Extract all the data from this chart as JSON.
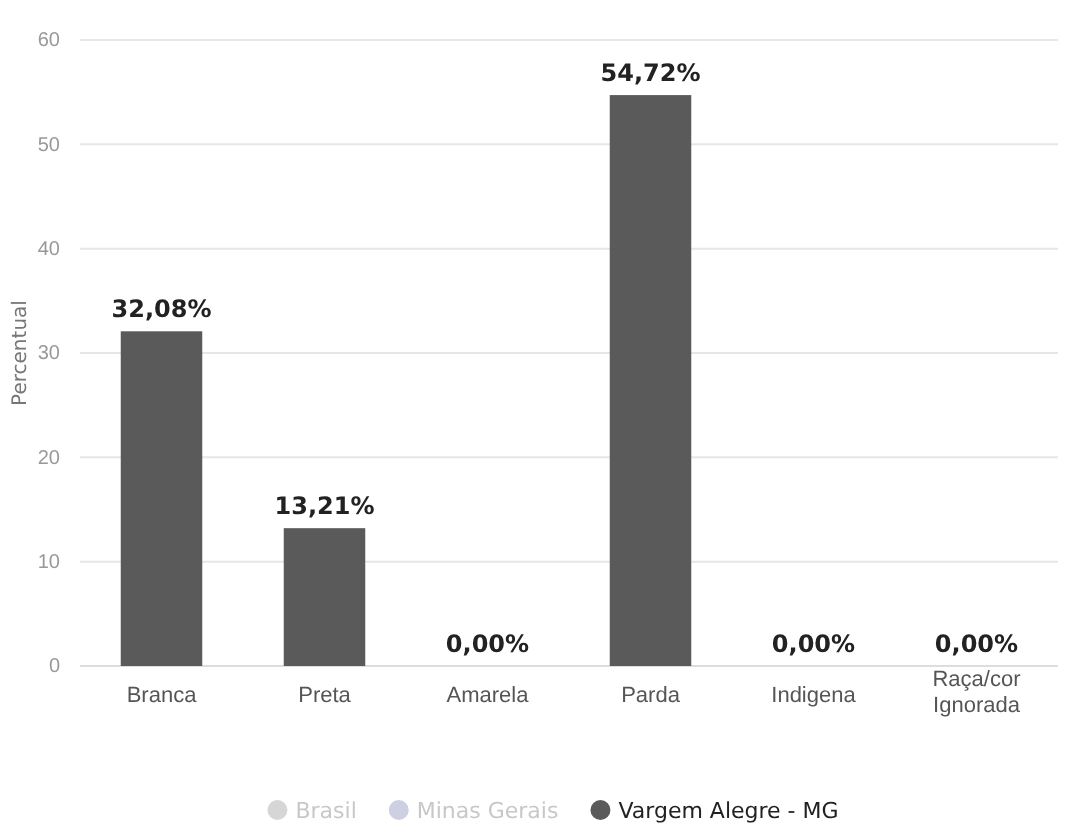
{
  "chart_data": {
    "type": "bar",
    "ylabel": "Percentual",
    "categories": [
      "Branca",
      "Preta",
      "Amarela",
      "Parda",
      "Indigena",
      "Raça/cor Ignorada"
    ],
    "series": [
      {
        "name": "Brasil",
        "color": "#d6d6d6",
        "values": [
          null,
          null,
          null,
          null,
          null,
          null
        ]
      },
      {
        "name": "Minas Gerais",
        "color": "#cdd0e0",
        "values": [
          null,
          null,
          null,
          null,
          null,
          null
        ]
      },
      {
        "name": "Vargem Alegre - MG",
        "color": "#5a5a5a",
        "values": [
          32.08,
          13.21,
          0,
          54.72,
          0,
          0
        ],
        "value_labels": [
          "32,08%",
          "13,21%",
          "0,00%",
          "54,72%",
          "0,00%",
          "0,00%"
        ]
      }
    ],
    "ylim": [
      0,
      60
    ],
    "yticks": [
      0,
      10,
      20,
      30,
      40,
      50,
      60
    ],
    "grid": "y",
    "legend": "bottom"
  }
}
